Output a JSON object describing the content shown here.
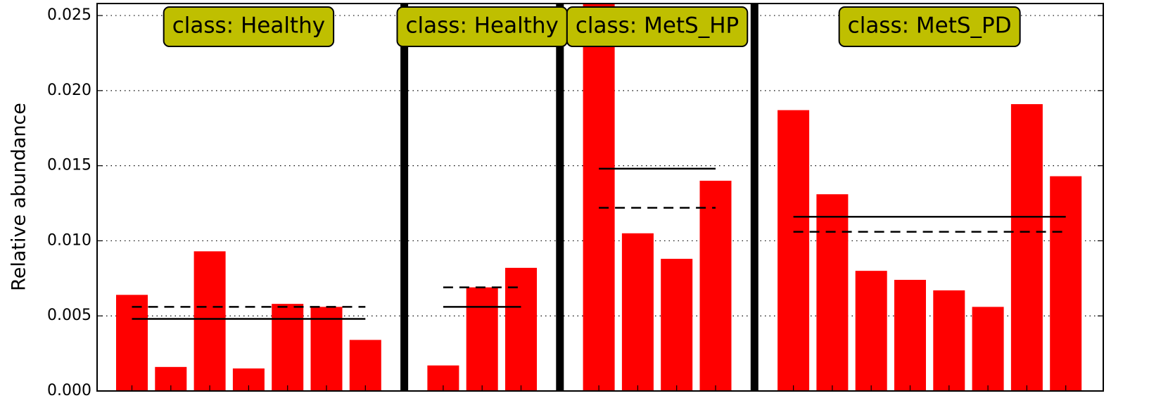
{
  "chart_data": {
    "type": "bar",
    "ylabel": "Relative abundance",
    "color": "#ff0000",
    "label_color": "#bfbf00",
    "grid": true,
    "ylim": [
      0,
      0.0258
    ],
    "yticks": [
      {
        "value": 0,
        "label": "0.000"
      },
      0.005,
      {
        "value": 0.01,
        "label": "0.010"
      },
      0.015,
      {
        "value": 0.02,
        "label": "0.020"
      },
      0.025
    ],
    "groups": [
      {
        "label": "class: Healthy",
        "values": [
          0.0064,
          0.0016,
          0.0093,
          0.0015,
          0.0058,
          0.0056,
          0.0034
        ],
        "mean": 0.0048,
        "median": 0.0056
      },
      {
        "label": "class: Healthy",
        "values": [
          0.0017,
          0.0069,
          0.0082
        ],
        "mean": 0.0056,
        "median": 0.0069
      },
      {
        "label": "class: MetS_HP",
        "values": [
          0.0259,
          0.0105,
          0.0088,
          0.014
        ],
        "mean": 0.0148,
        "median": 0.0122
      },
      {
        "label": "class: MetS_PD",
        "values": [
          0.0187,
          0.0131,
          0.008,
          0.0074,
          0.0067,
          0.0056,
          0.0191,
          0.0143
        ],
        "mean": 0.0116,
        "median": 0.0106
      }
    ]
  }
}
